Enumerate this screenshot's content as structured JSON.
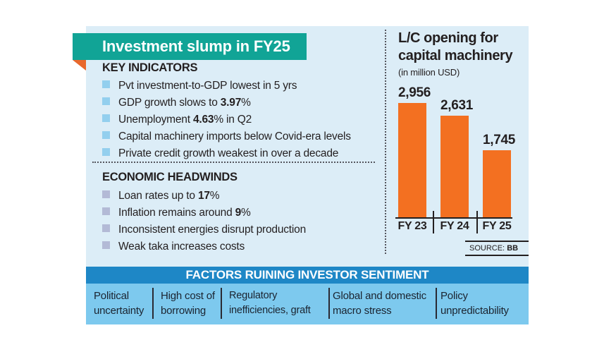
{
  "ribbon": {
    "title": "Investment slump in FY25"
  },
  "key_indicators": {
    "heading": "KEY INDICATORS",
    "items": [
      {
        "pre": "Pvt investment-to-GDP lowest in 5 yrs",
        "bold": "",
        "post": ""
      },
      {
        "pre": "GDP growth slows to ",
        "bold": "3.97",
        "post": "%"
      },
      {
        "pre": "Unemployment ",
        "bold": "4.63",
        "post": "% in Q2"
      },
      {
        "pre": "Capital machinery imports below Covid-era levels",
        "bold": "",
        "post": ""
      },
      {
        "pre": "Private credit growth weakest in over a decade",
        "bold": "",
        "post": ""
      }
    ]
  },
  "economic_headwinds": {
    "heading": "ECONOMIC HEADWINDS",
    "items": [
      {
        "pre": "Loan rates up to ",
        "bold": "17",
        "post": "%"
      },
      {
        "pre": "Inflation remains around ",
        "bold": "9",
        "post": "%"
      },
      {
        "pre": "Inconsistent energies disrupt production",
        "bold": "",
        "post": ""
      },
      {
        "pre": "Weak taka increases costs",
        "bold": "",
        "post": ""
      }
    ]
  },
  "chart": {
    "title_line1": "L/C opening for",
    "title_line2": "capital machinery",
    "unit": "(in million USD)",
    "source_label": "SOURCE: ",
    "source_value": "BB"
  },
  "chart_data": {
    "type": "bar",
    "title": "L/C opening for capital machinery",
    "ylabel": "L/C opening (million USD)",
    "categories": [
      "FY 23",
      "FY 24",
      "FY 25"
    ],
    "values": [
      2956,
      2631,
      1745
    ],
    "value_labels": [
      "2,956",
      "2,631",
      "1,745"
    ],
    "ylim": [
      0,
      2956
    ],
    "bar_color": "#f37021",
    "grid": false,
    "legend": false,
    "source": "SOURCE: BB"
  },
  "factors": {
    "heading": "FACTORS RUINING INVESTOR SENTIMENT",
    "items": [
      "Political uncertainty",
      "High cost of borrowing",
      "Regulatory inefficiencies, graft",
      "Global and domestic macro stress",
      "Policy unpredictability"
    ]
  },
  "colors": {
    "panel_bg": "#dcedf7",
    "ribbon_teal": "#11a496",
    "ribbon_fold_orange": "#e8682c",
    "bar_orange": "#f37021",
    "banner_blue": "#1e87c6",
    "band_light_blue": "#7dc9ee",
    "bullet_blue": "#93cfee",
    "bullet_lavender": "#b3bad6",
    "text": "#231f20"
  }
}
